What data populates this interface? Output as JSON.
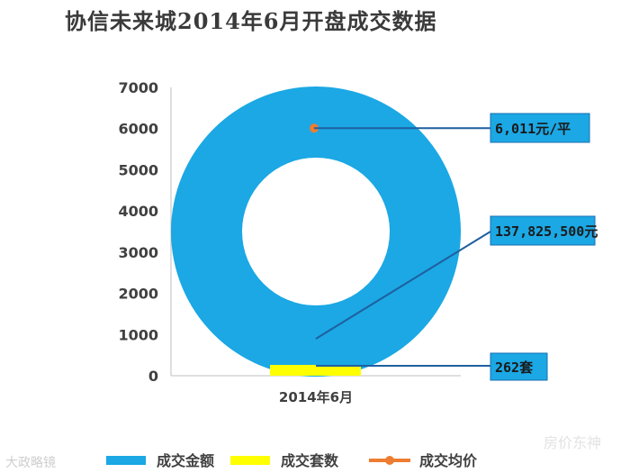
{
  "page": {
    "title": "协信未来城2014年6月开盘成交数据"
  },
  "chart_data": {
    "type": "donut",
    "title": "协信未来城2014年6月开盘成交数据",
    "ylim": [
      0,
      7000
    ],
    "yticks": [
      0,
      1000,
      2000,
      3000,
      4000,
      5000,
      6000,
      7000
    ],
    "categories": [
      "2014年6月"
    ],
    "grid": false,
    "legend_position": "bottom",
    "series": [
      {
        "name": "成交金额",
        "color": "#1ba8e4",
        "label": "137,825,500元",
        "value": 137825500
      },
      {
        "name": "成交套数",
        "color": "#ffff00",
        "label": "262套",
        "value": 262
      },
      {
        "name": "成交均价",
        "color": "#ed7d31",
        "label": "6,011元/平",
        "value": 6011
      }
    ],
    "callout_color": "#1ba8e4",
    "leader_color": "#1f5fa0"
  },
  "watermarks": {
    "left": "大政略镜",
    "right": "房价东神"
  }
}
